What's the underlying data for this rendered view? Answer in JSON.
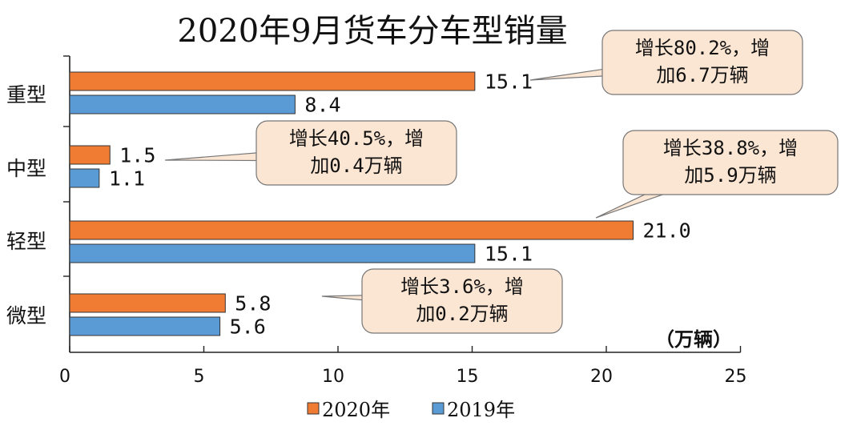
{
  "chart_data": {
    "type": "bar",
    "orientation": "horizontal",
    "title": "2020年9月货车分车型销量",
    "unit": "（万辆）",
    "categories": [
      "重型",
      "中型",
      "轻型",
      "微型"
    ],
    "series": [
      {
        "name": "2020年",
        "color": "#f07c34",
        "values": [
          15.1,
          1.5,
          21.0,
          5.8
        ]
      },
      {
        "name": "2019年",
        "color": "#5b9bd5",
        "values": [
          8.4,
          1.1,
          15.1,
          5.6
        ]
      }
    ],
    "value_labels": {
      "2020年": [
        "15.1",
        "1.5",
        "21.0",
        "5.8"
      ],
      "2019年": [
        "8.4",
        "1.1",
        "15.1",
        "5.6"
      ]
    },
    "xlim": [
      0,
      25
    ],
    "xticks": [
      "0",
      "5",
      "10",
      "15",
      "20",
      "25"
    ],
    "legend_position": "bottom",
    "grid": false,
    "annotations": [
      {
        "category": "重型",
        "lines": [
          "增长80.2%，增",
          "加6.7万辆"
        ]
      },
      {
        "category": "中型",
        "lines": [
          "增长40.5%，增",
          "加0.4万辆"
        ]
      },
      {
        "category": "轻型",
        "lines": [
          "增长38.8%，增",
          "加5.9万辆"
        ]
      },
      {
        "category": "微型",
        "lines": [
          "增长3.6%，增",
          "加0.2万辆"
        ]
      }
    ],
    "annotation_fill": "#fbe5d3"
  }
}
